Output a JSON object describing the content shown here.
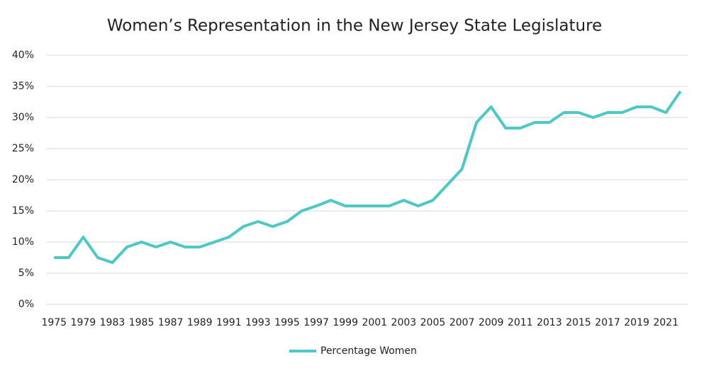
{
  "chart_data": {
    "type": "line",
    "title": "Women’s Representation in the New Jersey State Legislature",
    "categories": [
      "1975",
      null,
      "1979",
      null,
      "1983",
      null,
      "1985",
      null,
      "1987",
      null,
      "1989",
      null,
      "1991",
      null,
      "1993",
      null,
      "1995",
      null,
      "1997",
      null,
      "1999",
      null,
      "2001",
      null,
      "2003",
      null,
      "2005",
      null,
      "2007",
      null,
      "2009",
      null,
      "2011",
      null,
      "2013",
      null,
      "2015",
      null,
      "2017",
      null,
      "2019",
      null,
      "2021",
      null
    ],
    "series": [
      {
        "name": "Percentage Women",
        "color": "#4ec8c5",
        "values": [
          7.5,
          7.5,
          10.8,
          7.5,
          6.7,
          9.2,
          10,
          9.2,
          10,
          9.2,
          9.2,
          10,
          10.8,
          12.5,
          13.3,
          12.5,
          13.3,
          15,
          15.8,
          16.7,
          15.8,
          15.8,
          15.8,
          15.8,
          16.7,
          15.8,
          16.7,
          19.2,
          21.7,
          29.2,
          31.7,
          28.3,
          28.3,
          29.2,
          29.2,
          30.8,
          30.8,
          30,
          30.8,
          30.8,
          31.7,
          31.7,
          30.8,
          34.2
        ]
      }
    ],
    "ylim": [
      0,
      40
    ],
    "yticks": [
      {
        "value": 0,
        "label": "0%"
      },
      {
        "value": 5,
        "label": "5%"
      },
      {
        "value": 10,
        "label": "10%"
      },
      {
        "value": 15,
        "label": "15%"
      },
      {
        "value": 20,
        "label": "20%"
      },
      {
        "value": 25,
        "label": "25%"
      },
      {
        "value": 30,
        "label": "30%"
      },
      {
        "value": 35,
        "label": "35%"
      },
      {
        "value": 40,
        "label": "40%"
      }
    ],
    "grid": true,
    "legend": "bottom"
  }
}
